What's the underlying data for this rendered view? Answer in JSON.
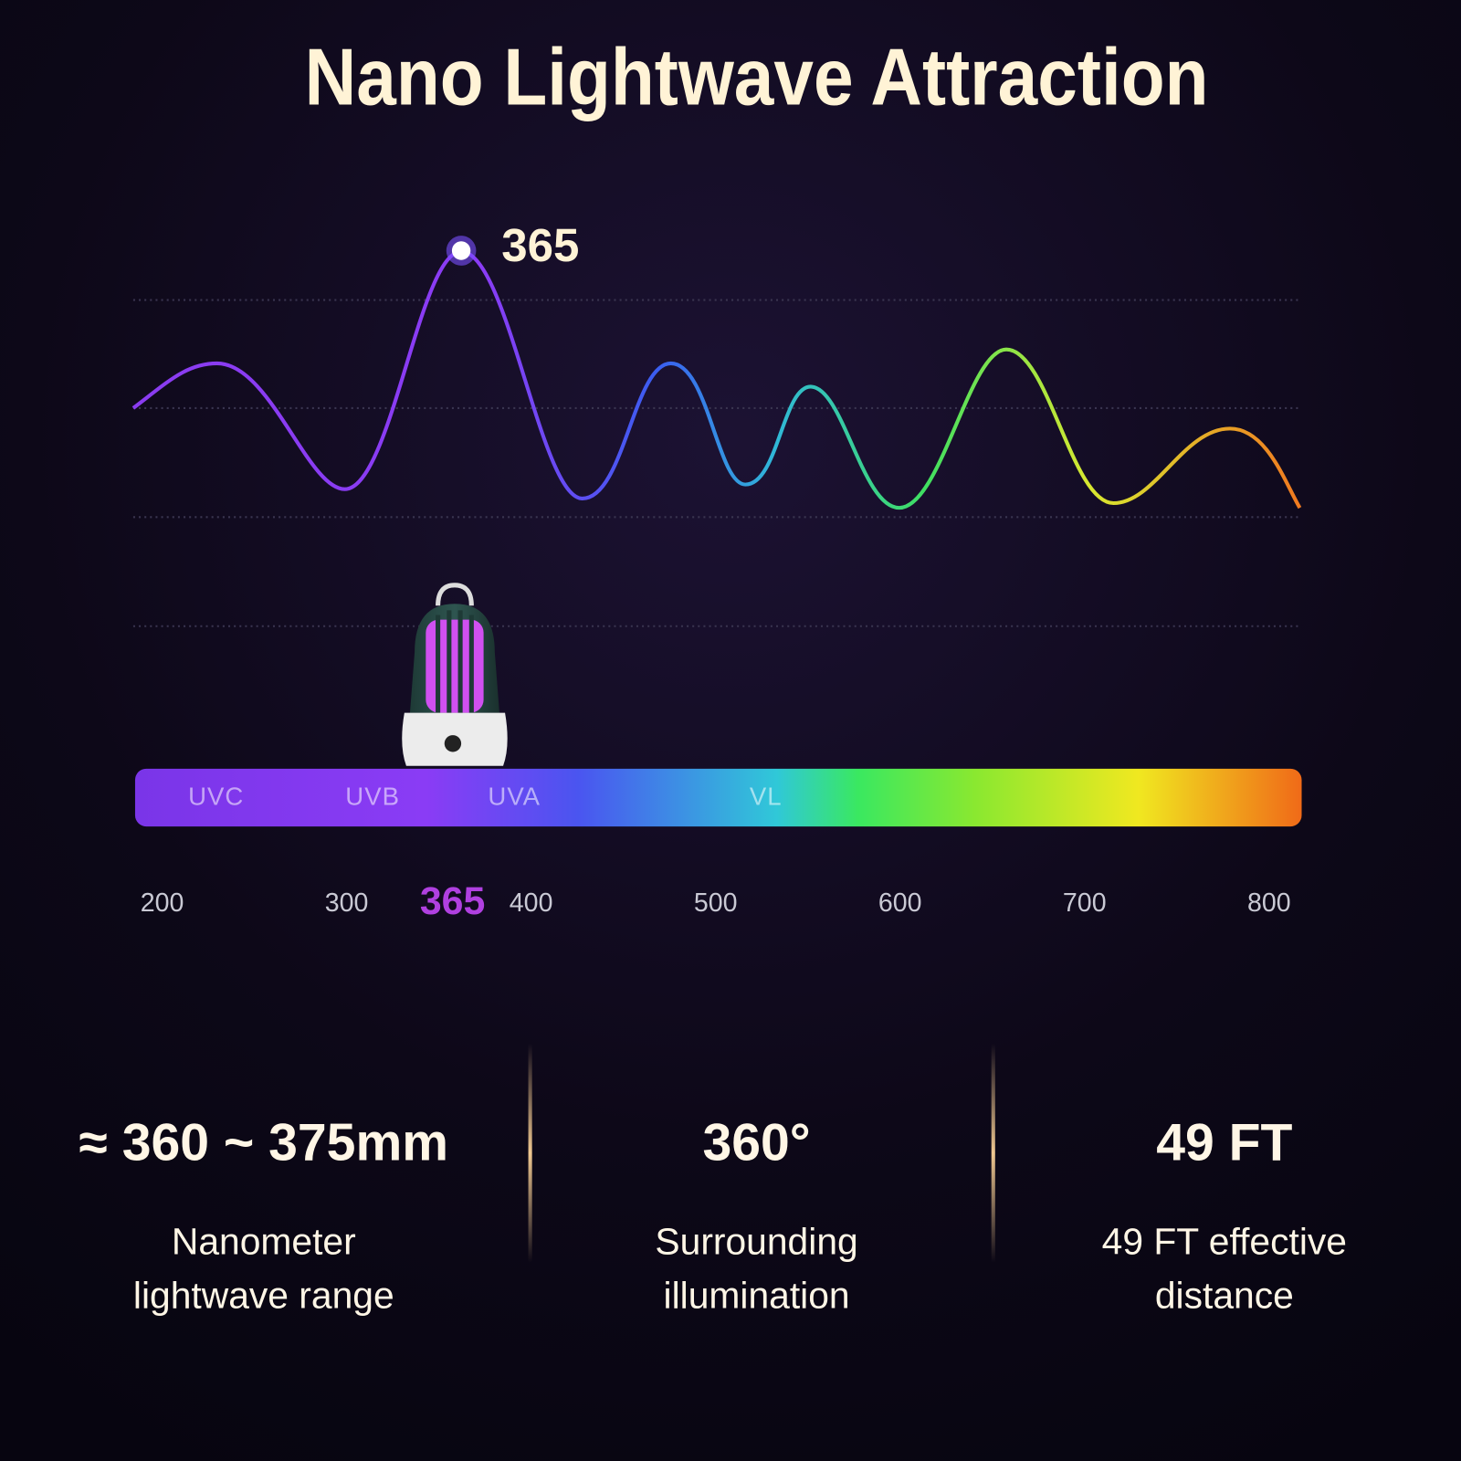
{
  "title": "Nano Lightwave Attraction",
  "peak_label": "365",
  "bands": [
    "UVC",
    "UVB",
    "UVA",
    "VL"
  ],
  "axis_ticks": [
    200,
    300,
    400,
    500,
    600,
    700,
    800
  ],
  "highlight": 365,
  "stats": [
    {
      "value": "≈ 360 ~ 375mm",
      "description": [
        "Nanometer",
        "lightwave range"
      ]
    },
    {
      "value": "360°",
      "description": [
        "Surrounding",
        "illumination"
      ]
    },
    {
      "value": "49 FT",
      "description": [
        "49 FT effective",
        "distance"
      ]
    }
  ]
}
